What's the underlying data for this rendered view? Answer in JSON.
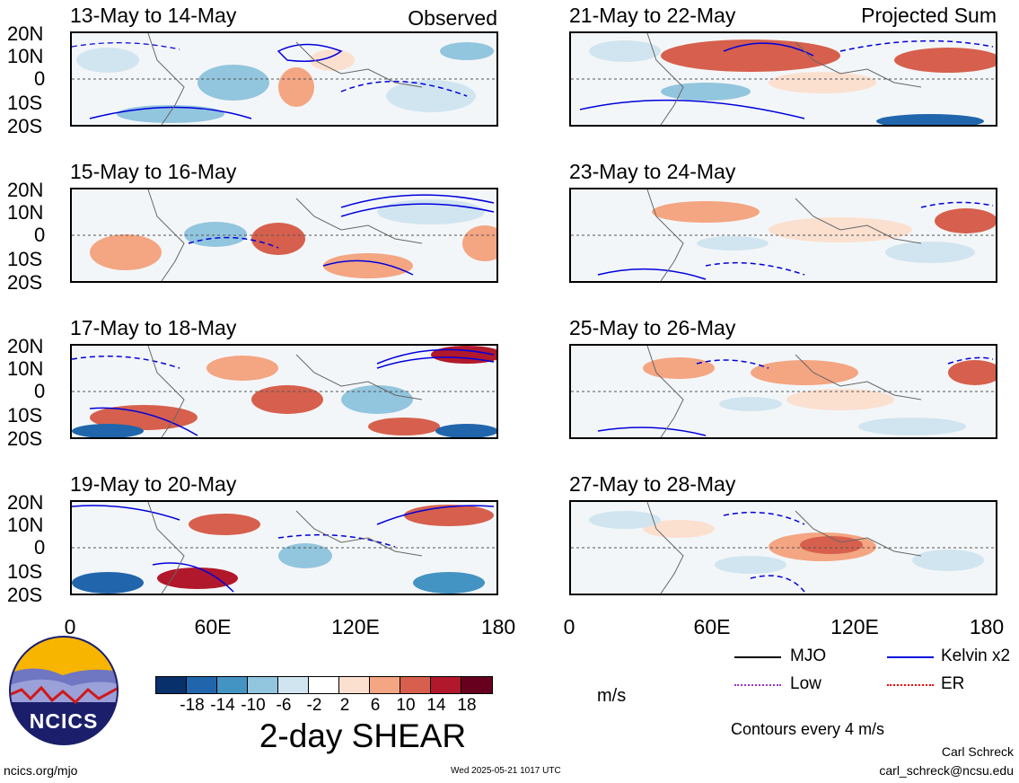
{
  "panels_left": [
    {
      "title": "13-May to 14-May",
      "tag": "Observed"
    },
    {
      "title": "15-May to 16-May",
      "tag": ""
    },
    {
      "title": "17-May to 18-May",
      "tag": ""
    },
    {
      "title": "19-May to 20-May",
      "tag": ""
    }
  ],
  "panels_right": [
    {
      "title": "21-May to 22-May",
      "tag": "Projected Sum"
    },
    {
      "title": "23-May to 24-May",
      "tag": ""
    },
    {
      "title": "25-May to 26-May",
      "tag": ""
    },
    {
      "title": "27-May to 28-May",
      "tag": ""
    }
  ],
  "lat_labels": [
    "20N",
    "10N",
    "0",
    "10S",
    "20S"
  ],
  "lon_labels": [
    "0",
    "60E",
    "120E",
    "180"
  ],
  "colorbar": {
    "colors": [
      "#08306b",
      "#2166ac",
      "#4393c3",
      "#92c5de",
      "#d1e5f0",
      "#ffffff",
      "#fbe0d0",
      "#f4a582",
      "#d6604d",
      "#b2182b",
      "#67001f"
    ],
    "ticks": [
      "-18",
      "-14",
      "-10",
      "-6",
      "-2",
      "2",
      "6",
      "10",
      "14",
      "18"
    ],
    "units": "m/s",
    "title": "2-day SHEAR"
  },
  "legend": {
    "items": [
      {
        "label": "MJO",
        "color": "#000000"
      },
      {
        "label": "Kelvin x2",
        "color": "#0000dd"
      },
      {
        "label": "Low",
        "color": "#9933cc"
      },
      {
        "label": "ER",
        "color": "#ee0000"
      }
    ],
    "contour_note": "Contours every 4 m/s"
  },
  "logo_text": "NCICS",
  "footer": {
    "site": "ncics.org/mjo",
    "timestamp": "Wed 2025-05-21 1017 UTC",
    "author": "Carl Schreck",
    "email": "carl_schreck@ncsu.edu"
  }
}
